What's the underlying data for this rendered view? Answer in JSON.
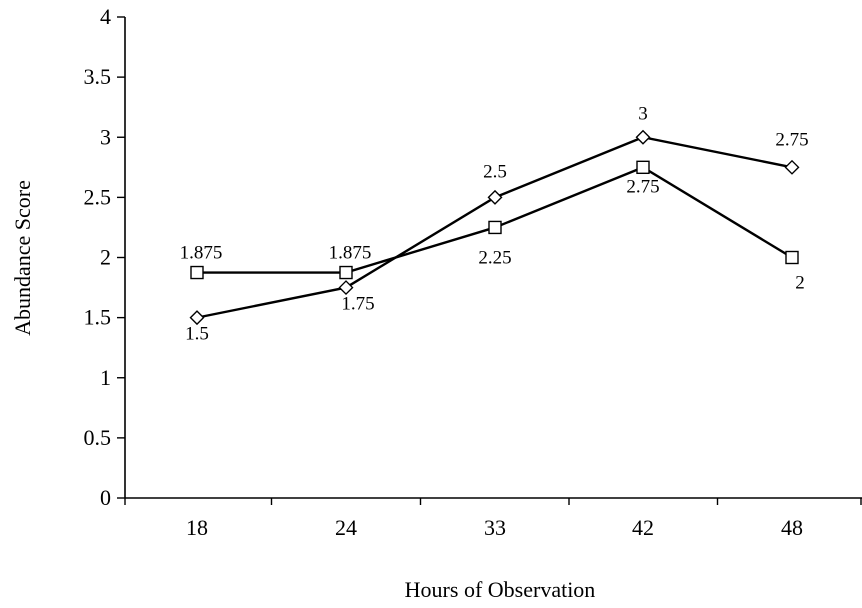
{
  "chart_data": {
    "type": "line",
    "title": "",
    "xlabel": "Hours of Observation",
    "ylabel": "Abundance Score",
    "categories": [
      "18",
      "24",
      "33",
      "42",
      "48"
    ],
    "ylim": [
      0,
      4
    ],
    "yticks": [
      "0",
      "0.5",
      "1",
      "1.5",
      "2",
      "2.5",
      "3",
      "3.5",
      "4"
    ],
    "grid": false,
    "legend": "none",
    "series": [
      {
        "marker": "diamond",
        "values": [
          1.5,
          1.75,
          2.5,
          3,
          2.75
        ],
        "labels": [
          "1.5",
          "1.75",
          "2.5",
          "3",
          "2.75"
        ]
      },
      {
        "marker": "square",
        "values": [
          1.875,
          1.875,
          2.25,
          2.75,
          2
        ],
        "labels": [
          "1.875",
          "1.875",
          "2.25",
          "2.75",
          "2"
        ]
      }
    ]
  }
}
